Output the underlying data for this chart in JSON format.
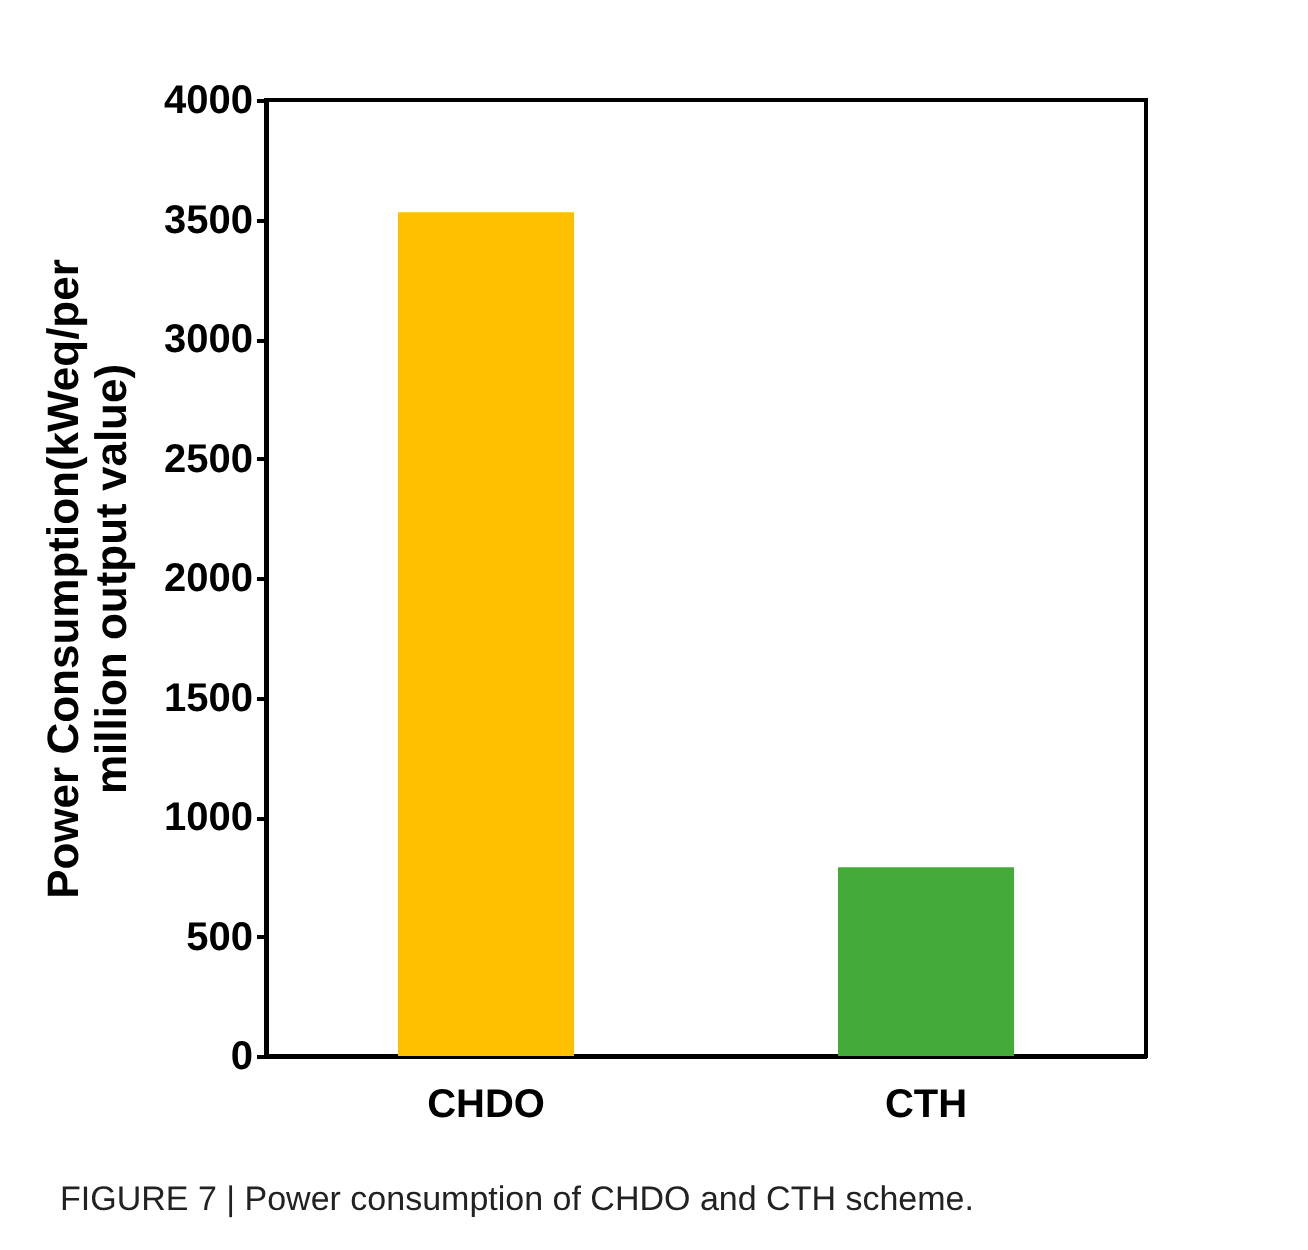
{
  "chart_data": {
    "type": "bar",
    "ylabel": "Power Consumption(kWeq/per million output value)",
    "categories": [
      "CHDO",
      "CTH"
    ],
    "values": [
      3530,
      790
    ],
    "colors": [
      "#ffc000",
      "#44aa3a"
    ],
    "ylim": [
      0,
      4000
    ],
    "yticks": [
      0,
      500,
      1000,
      1500,
      2000,
      2500,
      3000,
      3500,
      4000
    ],
    "grid": false,
    "annotations": [
      "FIGURE 7 | Power consumption of CHDO and CTH scheme."
    ]
  }
}
